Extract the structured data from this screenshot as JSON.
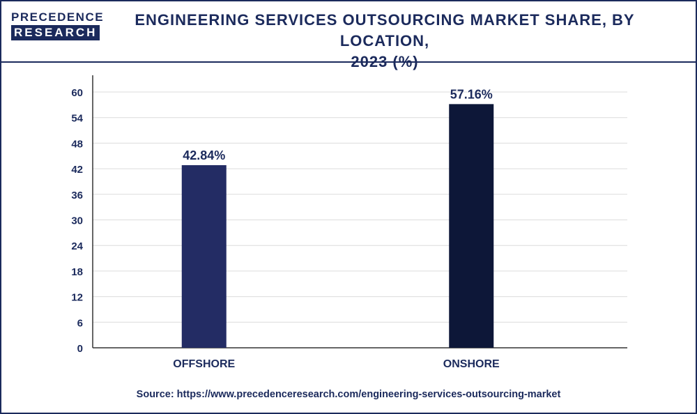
{
  "logo": {
    "line1": "PRECEDENCE",
    "line2": "RESEARCH"
  },
  "title_line1": "ENGINEERING SERVICES OUTSOURCING MARKET SHARE, BY LOCATION,",
  "title_line2": "2023 (%)",
  "source": "Source: https://www.precedenceresearch.com/engineering-services-outsourcing-market",
  "colors": {
    "offshore": "#232c64",
    "onshore": "#0d1738",
    "text": "#1b2a5c",
    "grid": "#dcdcdc"
  },
  "chart_data": {
    "type": "bar",
    "categories": [
      "OFFSHORE",
      "ONSHORE"
    ],
    "values": [
      42.84,
      57.16
    ],
    "data_labels": [
      "42.84%",
      "57.16%"
    ],
    "yticks": [
      "0",
      "6",
      "12",
      "18",
      "24",
      "30",
      "36",
      "42",
      "48",
      "54",
      "60"
    ],
    "ylim": [
      0,
      60
    ],
    "grid": true
  }
}
